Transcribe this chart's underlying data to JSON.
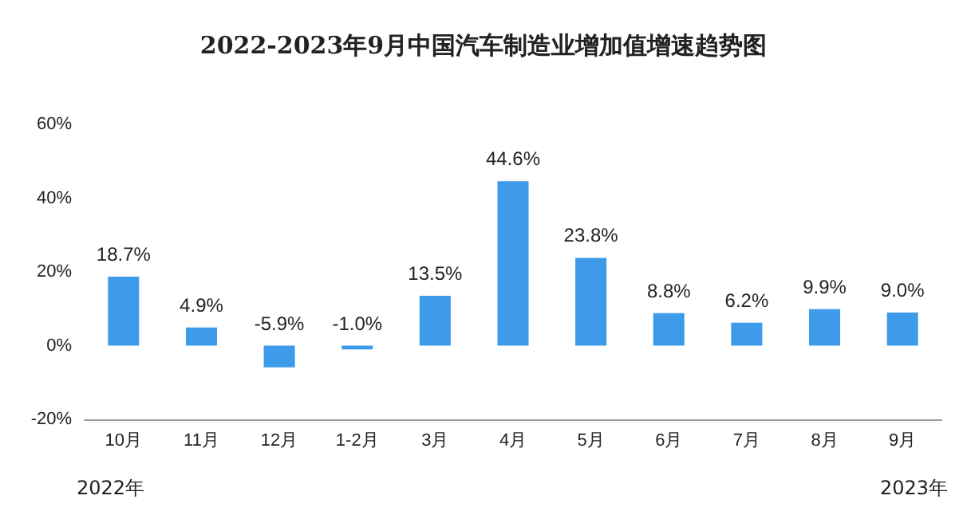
{
  "chart_data": {
    "type": "bar",
    "title": "2022-2023年9月中国汽车制造业增加值增速趋势图",
    "categories": [
      "10月",
      "11月",
      "12月",
      "1-2月",
      "3月",
      "4月",
      "5月",
      "6月",
      "7月",
      "8月",
      "9月"
    ],
    "values": [
      18.7,
      4.9,
      -5.9,
      -1.0,
      13.5,
      44.6,
      23.8,
      8.8,
      6.2,
      9.9,
      9.0
    ],
    "value_labels": [
      "18.7%",
      "4.9%",
      "-5.9%",
      "-1.0%",
      "13.5%",
      "44.6%",
      "23.8%",
      "8.8%",
      "6.2%",
      "9.9%",
      "9.0%"
    ],
    "color": "#3d9be9",
    "ylim": [
      -20,
      60
    ],
    "yticks": [
      {
        "value": -20,
        "label": "-20%"
      },
      {
        "value": 0,
        "label": "0%"
      },
      {
        "value": 20,
        "label": "20%"
      },
      {
        "value": 40,
        "label": "40%"
      },
      {
        "value": 60,
        "label": "60%"
      }
    ],
    "annotations": [
      "2022年",
      "2023年"
    ],
    "grid": false
  }
}
